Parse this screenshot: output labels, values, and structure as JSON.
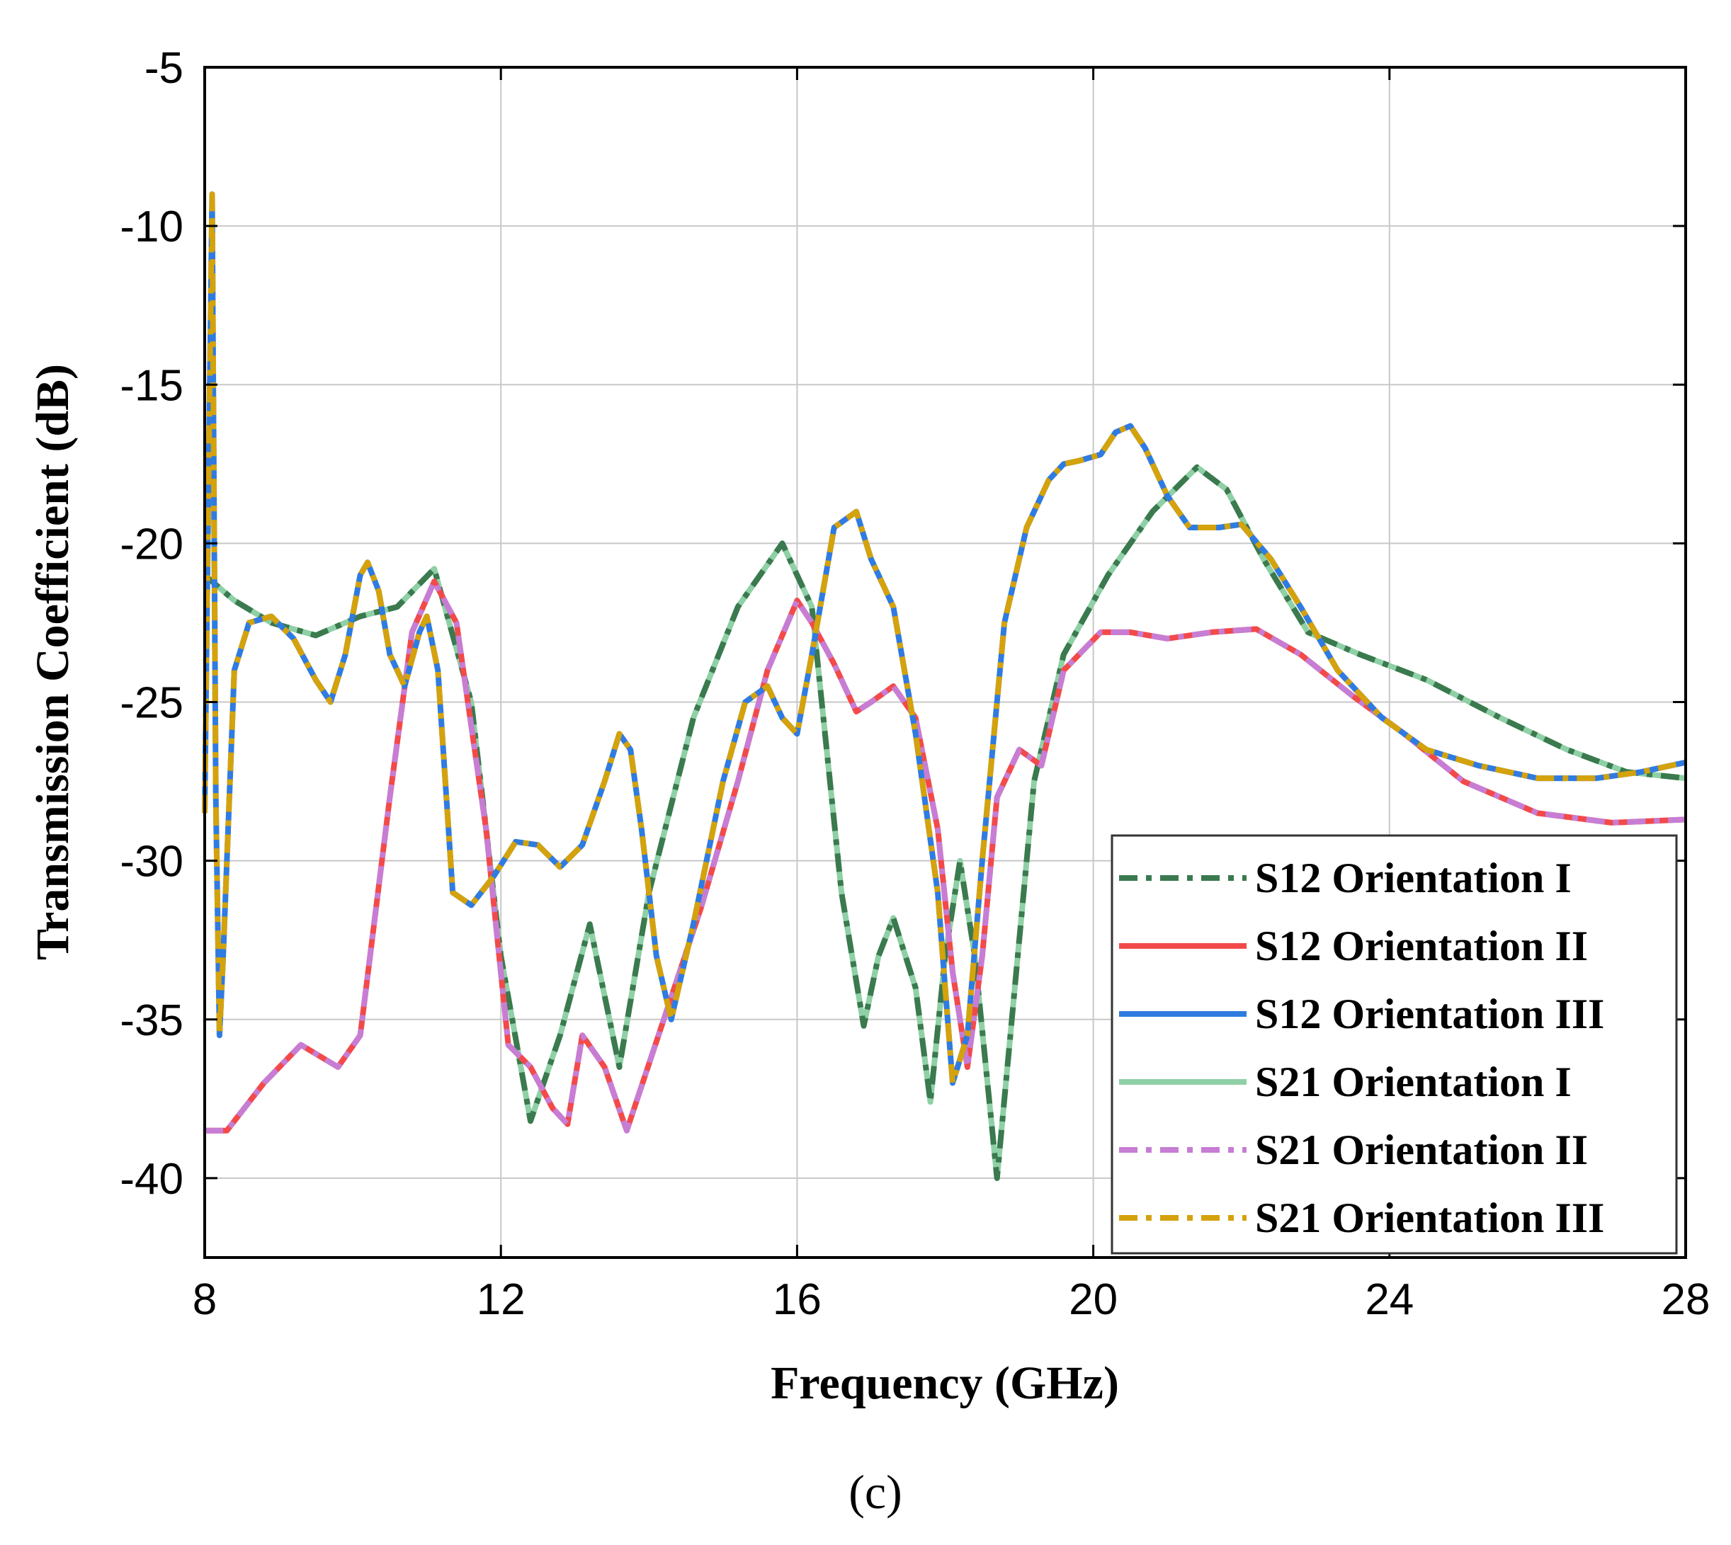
{
  "chart_data": {
    "type": "line",
    "title": "",
    "caption": "(c)",
    "xlabel": "Frequency (GHz)",
    "ylabel": "Transmission Coefficient (dB)",
    "xlim": [
      8,
      28
    ],
    "ylim": [
      -42.5,
      -5
    ],
    "xticks": [
      8,
      12,
      16,
      20,
      24,
      28
    ],
    "yticks": [
      -5,
      -10,
      -15,
      -20,
      -25,
      -30,
      -35,
      -40
    ],
    "xtick_labels": [
      "8",
      "12",
      "16",
      "20",
      "24",
      "28"
    ],
    "ytick_labels": [
      "-5",
      "-10",
      "-15",
      "-20",
      "-25",
      "-30",
      "-35",
      "-40"
    ],
    "grid": true,
    "legend_position": "bottom-right",
    "series": [
      {
        "name": "S12 Orientation I",
        "color": "#3a7a4e",
        "style": "dashdot",
        "x": [
          8.0,
          8.4,
          8.9,
          9.5,
          10.1,
          10.6,
          11.1,
          11.6,
          12.0,
          12.4,
          12.8,
          13.2,
          13.6,
          14.0,
          14.6,
          15.2,
          15.8,
          16.2,
          16.6,
          16.9,
          17.1,
          17.3,
          17.6,
          17.8,
          18.0,
          18.2,
          18.4,
          18.7,
          18.9,
          19.2,
          19.6,
          20.2,
          20.8,
          21.4,
          21.8,
          22.3,
          22.9,
          23.6,
          24.5,
          25.5,
          26.4,
          27.2,
          28.0
        ],
        "y": [
          -21.0,
          -21.8,
          -22.5,
          -22.9,
          -22.3,
          -22.0,
          -20.8,
          -25.0,
          -33.0,
          -38.2,
          -35.5,
          -32.0,
          -36.5,
          -31.0,
          -25.5,
          -22.0,
          -20.0,
          -22.0,
          -31.0,
          -35.2,
          -33.0,
          -31.8,
          -34.0,
          -37.6,
          -33.0,
          -30.0,
          -33.0,
          -40.0,
          -35.0,
          -27.5,
          -23.5,
          -21.0,
          -19.0,
          -17.6,
          -18.3,
          -20.5,
          -22.8,
          -23.5,
          -24.3,
          -25.5,
          -26.5,
          -27.2,
          -27.4
        ]
      },
      {
        "name": "S12 Orientation II",
        "color": "#f24a4a",
        "style": "solid",
        "x": [
          8.0,
          8.3,
          8.8,
          9.3,
          9.8,
          10.1,
          10.5,
          10.8,
          11.1,
          11.4,
          11.8,
          12.1,
          12.4,
          12.7,
          12.9,
          13.1,
          13.4,
          13.7,
          14.2,
          14.7,
          15.2,
          15.6,
          16.0,
          16.2,
          16.5,
          16.8,
          17.0,
          17.3,
          17.6,
          17.9,
          18.1,
          18.3,
          18.5,
          18.7,
          19.0,
          19.3,
          19.6,
          20.1,
          20.5,
          21.0,
          21.6,
          22.2,
          22.8,
          23.5,
          24.2,
          25.0,
          26.0,
          27.0,
          28.0
        ],
        "y": [
          -38.5,
          -38.5,
          -37.0,
          -35.8,
          -36.5,
          -35.5,
          -28.0,
          -22.8,
          -21.2,
          -22.5,
          -29.0,
          -35.8,
          -36.5,
          -37.8,
          -38.3,
          -35.5,
          -36.5,
          -38.5,
          -35.0,
          -31.5,
          -27.5,
          -24.0,
          -21.8,
          -22.5,
          -23.8,
          -25.3,
          -25.0,
          -24.5,
          -25.5,
          -29.0,
          -33.5,
          -36.5,
          -33.0,
          -28.0,
          -26.5,
          -27.0,
          -24.0,
          -22.8,
          -22.8,
          -23.0,
          -22.8,
          -22.7,
          -23.5,
          -24.8,
          -26.0,
          -27.5,
          -28.5,
          -28.8,
          -28.7
        ]
      },
      {
        "name": "S12 Orientation III",
        "color": "#2f7be0",
        "style": "solid",
        "x": [
          8.0,
          8.05,
          8.1,
          8.15,
          8.2,
          8.25,
          8.4,
          8.6,
          8.9,
          9.2,
          9.5,
          9.7,
          9.9,
          10.1,
          10.2,
          10.35,
          10.5,
          10.7,
          10.9,
          11.0,
          11.15,
          11.35,
          11.6,
          11.9,
          12.2,
          12.5,
          12.8,
          13.1,
          13.4,
          13.6,
          13.75,
          13.9,
          14.1,
          14.3,
          14.6,
          15.0,
          15.3,
          15.6,
          15.8,
          16.0,
          16.2,
          16.5,
          16.8,
          17.0,
          17.3,
          17.6,
          17.9,
          18.1,
          18.3,
          18.5,
          18.8,
          19.1,
          19.4,
          19.6,
          19.8,
          20.1,
          20.3,
          20.5,
          20.7,
          21.0,
          21.3,
          21.7,
          22.0,
          22.4,
          22.8,
          23.3,
          23.9,
          24.5,
          25.2,
          26.0,
          26.8,
          27.4,
          28.0
        ],
        "y": [
          -28.5,
          -18.5,
          -9.0,
          -28.0,
          -35.5,
          -33.0,
          -24.0,
          -22.5,
          -22.3,
          -23.0,
          -24.3,
          -25.0,
          -23.5,
          -21.0,
          -20.6,
          -21.5,
          -23.5,
          -24.5,
          -22.8,
          -22.3,
          -24.0,
          -31.0,
          -31.4,
          -30.5,
          -29.4,
          -29.5,
          -30.2,
          -29.5,
          -27.5,
          -26.0,
          -26.5,
          -29.0,
          -33.0,
          -35.0,
          -32.0,
          -27.5,
          -25.0,
          -24.5,
          -25.5,
          -26.0,
          -23.5,
          -19.5,
          -19.0,
          -20.5,
          -22.0,
          -26.0,
          -31.0,
          -37.0,
          -35.5,
          -30.0,
          -22.5,
          -19.5,
          -18.0,
          -17.5,
          -17.4,
          -17.2,
          -16.5,
          -16.3,
          -17.0,
          -18.5,
          -19.5,
          -19.5,
          -19.4,
          -20.5,
          -22.0,
          -24.0,
          -25.5,
          -26.5,
          -27.0,
          -27.4,
          -27.4,
          -27.2,
          -26.9
        ]
      },
      {
        "name": "S21 Orientation I",
        "color": "#8fd0a6",
        "style": "solid",
        "x": [
          8.0,
          8.4,
          8.9,
          9.5,
          10.1,
          10.6,
          11.1,
          11.6,
          12.0,
          12.4,
          12.8,
          13.2,
          13.6,
          14.0,
          14.6,
          15.2,
          15.8,
          16.2,
          16.6,
          16.9,
          17.1,
          17.3,
          17.6,
          17.8,
          18.0,
          18.2,
          18.4,
          18.7,
          18.9,
          19.2,
          19.6,
          20.2,
          20.8,
          21.4,
          21.8,
          22.3,
          22.9,
          23.6,
          24.5,
          25.5,
          26.4,
          27.2,
          28.0
        ],
        "y": [
          -21.0,
          -21.8,
          -22.5,
          -22.9,
          -22.3,
          -22.0,
          -20.8,
          -25.0,
          -33.0,
          -38.2,
          -35.5,
          -32.0,
          -36.5,
          -31.0,
          -25.5,
          -22.0,
          -20.0,
          -22.0,
          -31.0,
          -35.2,
          -33.0,
          -31.8,
          -34.0,
          -37.6,
          -33.0,
          -30.0,
          -33.0,
          -40.0,
          -35.0,
          -27.5,
          -23.5,
          -21.0,
          -19.0,
          -17.6,
          -18.3,
          -20.5,
          -22.8,
          -23.5,
          -24.3,
          -25.5,
          -26.5,
          -27.2,
          -27.4
        ]
      },
      {
        "name": "S21 Orientation II",
        "color": "#c77dd4",
        "style": "dashdot",
        "x": [
          8.0,
          8.3,
          8.8,
          9.3,
          9.8,
          10.1,
          10.5,
          10.8,
          11.1,
          11.4,
          11.8,
          12.1,
          12.4,
          12.7,
          12.9,
          13.1,
          13.4,
          13.7,
          14.2,
          14.7,
          15.2,
          15.6,
          16.0,
          16.2,
          16.5,
          16.8,
          17.0,
          17.3,
          17.6,
          17.9,
          18.1,
          18.3,
          18.5,
          18.7,
          19.0,
          19.3,
          19.6,
          20.1,
          20.5,
          21.0,
          21.6,
          22.2,
          22.8,
          23.5,
          24.2,
          25.0,
          26.0,
          27.0,
          28.0
        ],
        "y": [
          -38.5,
          -38.5,
          -37.0,
          -35.8,
          -36.5,
          -35.5,
          -28.0,
          -22.8,
          -21.2,
          -22.5,
          -29.0,
          -35.8,
          -36.5,
          -37.8,
          -38.3,
          -35.5,
          -36.5,
          -38.5,
          -35.0,
          -31.5,
          -27.5,
          -24.0,
          -21.8,
          -22.5,
          -23.8,
          -25.3,
          -25.0,
          -24.5,
          -25.5,
          -29.0,
          -33.5,
          -36.5,
          -33.0,
          -28.0,
          -26.5,
          -27.0,
          -24.0,
          -22.8,
          -22.8,
          -23.0,
          -22.8,
          -22.7,
          -23.5,
          -24.8,
          -26.0,
          -27.5,
          -28.5,
          -28.8,
          -28.7
        ]
      },
      {
        "name": "S21 Orientation III",
        "color": "#d4a20c",
        "style": "dashdot",
        "x": [
          8.0,
          8.05,
          8.1,
          8.15,
          8.2,
          8.25,
          8.4,
          8.6,
          8.9,
          9.2,
          9.5,
          9.7,
          9.9,
          10.1,
          10.2,
          10.35,
          10.5,
          10.7,
          10.9,
          11.0,
          11.15,
          11.35,
          11.6,
          11.9,
          12.2,
          12.5,
          12.8,
          13.1,
          13.4,
          13.6,
          13.75,
          13.9,
          14.1,
          14.3,
          14.6,
          15.0,
          15.3,
          15.6,
          15.8,
          16.0,
          16.2,
          16.5,
          16.8,
          17.0,
          17.3,
          17.6,
          17.9,
          18.1,
          18.3,
          18.5,
          18.8,
          19.1,
          19.4,
          19.6,
          19.8,
          20.1,
          20.3,
          20.5,
          20.7,
          21.0,
          21.3,
          21.7,
          22.0,
          22.4,
          22.8,
          23.3,
          23.9,
          24.5,
          25.2,
          26.0,
          26.8,
          27.4,
          28.0
        ],
        "y": [
          -28.5,
          -18.5,
          -9.0,
          -28.0,
          -35.5,
          -33.0,
          -24.0,
          -22.5,
          -22.3,
          -23.0,
          -24.3,
          -25.0,
          -23.5,
          -21.0,
          -20.6,
          -21.5,
          -23.5,
          -24.5,
          -22.8,
          -22.3,
          -24.0,
          -31.0,
          -31.4,
          -30.5,
          -29.4,
          -29.5,
          -30.2,
          -29.5,
          -27.5,
          -26.0,
          -26.5,
          -29.0,
          -33.0,
          -35.0,
          -32.0,
          -27.5,
          -25.0,
          -24.5,
          -25.5,
          -26.0,
          -23.5,
          -19.5,
          -19.0,
          -20.5,
          -22.0,
          -26.0,
          -31.0,
          -37.0,
          -35.5,
          -30.0,
          -22.5,
          -19.5,
          -18.0,
          -17.5,
          -17.4,
          -17.2,
          -16.5,
          -16.3,
          -17.0,
          -18.5,
          -19.5,
          -19.5,
          -19.4,
          -20.5,
          -22.0,
          -24.0,
          -25.5,
          -26.5,
          -27.0,
          -27.4,
          -27.4,
          -27.2,
          -26.9
        ]
      }
    ]
  }
}
